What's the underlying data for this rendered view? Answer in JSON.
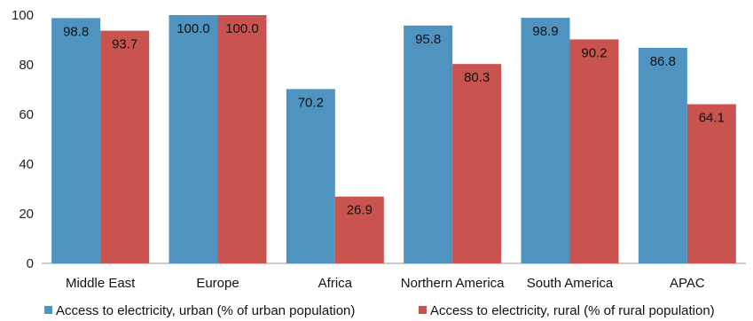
{
  "chart_data": {
    "type": "bar",
    "title": "",
    "xlabel": "",
    "ylabel": "",
    "ylim": [
      0,
      100
    ],
    "yticks": [
      0,
      20,
      40,
      60,
      80,
      100
    ],
    "grid": false,
    "legend_position": "bottom",
    "categories": [
      "Middle East",
      "Europe",
      "Africa",
      "Northern America",
      "South America",
      "APAC"
    ],
    "series": [
      {
        "name": "Access to electricity, urban (% of urban population)",
        "color": "#4f94c0",
        "values": [
          98.8,
          100.0,
          70.2,
          95.8,
          98.9,
          86.8
        ],
        "labels": [
          "98.8",
          "100.0",
          "70.2",
          "95.8",
          "98.9",
          "86.8"
        ]
      },
      {
        "name": "Access to electricity, rural (% of rural population)",
        "color": "#c9534f",
        "values": [
          93.7,
          100.0,
          26.9,
          80.3,
          90.2,
          64.1
        ],
        "labels": [
          "93.7",
          "100.0",
          "26.9",
          "80.3",
          "90.2",
          "64.1"
        ]
      }
    ]
  }
}
